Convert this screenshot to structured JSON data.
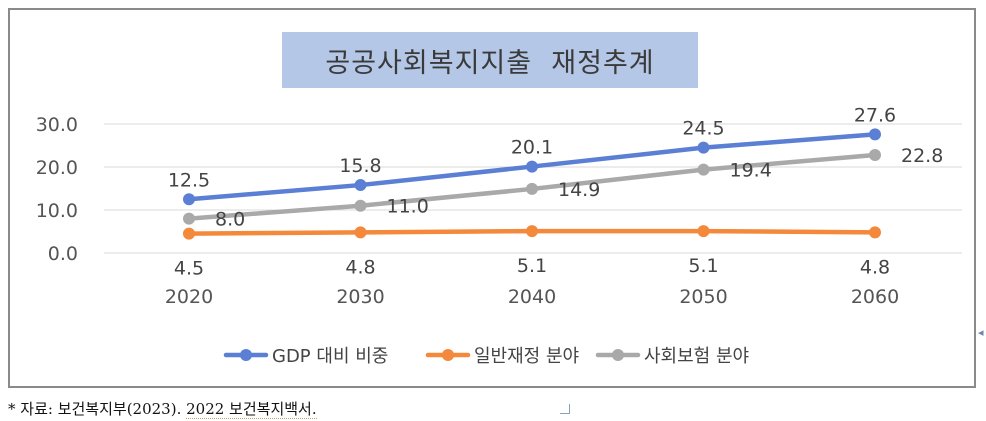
{
  "chart_data": {
    "type": "line",
    "title": "공공사회복지지출  재정추계",
    "categories": [
      "2020",
      "2030",
      "2040",
      "2050",
      "2060"
    ],
    "yticks": [
      "30.0",
      "20.0",
      "10.0",
      "0.0"
    ],
    "ylim": [
      0,
      30
    ],
    "grid": true,
    "legend_position": "bottom",
    "series": [
      {
        "name": "GDP 대비 비중",
        "color": "#5b7fd4",
        "values": [
          12.5,
          15.8,
          20.1,
          24.5,
          27.6
        ],
        "labels": [
          "12.5",
          "15.8",
          "20.1",
          "24.5",
          "27.6"
        ]
      },
      {
        "name": "일반재정 분야",
        "color": "#f4883b",
        "values": [
          4.5,
          4.8,
          5.1,
          5.1,
          4.8
        ],
        "labels": [
          "4.5",
          "4.8",
          "5.1",
          "5.1",
          "4.8"
        ]
      },
      {
        "name": "사회보험 분야",
        "color": "#a9a9a9",
        "values": [
          8.0,
          11.0,
          14.9,
          19.4,
          22.8
        ],
        "labels": [
          "8.0",
          "11.0",
          "14.9",
          "19.4",
          "22.8"
        ]
      }
    ]
  },
  "caption": {
    "prefix": "* 자료: 보건복지부(2023). ",
    "source": "2022 보건복지백서."
  }
}
